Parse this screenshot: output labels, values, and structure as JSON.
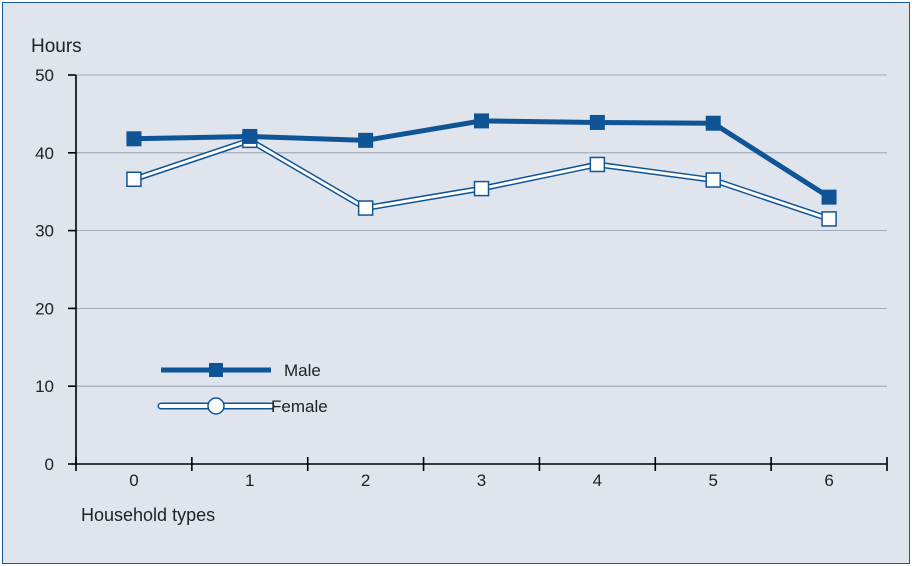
{
  "chart_data": {
    "type": "line",
    "title": "Hours",
    "xlabel": "Household types",
    "ylabel": "",
    "categories": [
      "0",
      "1",
      "2",
      "3",
      "4",
      "5",
      "6"
    ],
    "ylim": [
      0,
      50
    ],
    "yticks": [
      0,
      10,
      20,
      30,
      40,
      50
    ],
    "grid": true,
    "legend": "middle-left",
    "series": [
      {
        "name": "Male",
        "values": [
          41.8,
          42.1,
          41.6,
          44.1,
          43.9,
          43.8,
          34.3
        ],
        "color": "#0f5596",
        "marker": "filled-square"
      },
      {
        "name": "Female",
        "values": [
          36.6,
          41.6,
          32.9,
          35.4,
          38.5,
          36.5,
          31.5
        ],
        "color": "#0f5596",
        "marker": "hollow-square"
      }
    ]
  }
}
